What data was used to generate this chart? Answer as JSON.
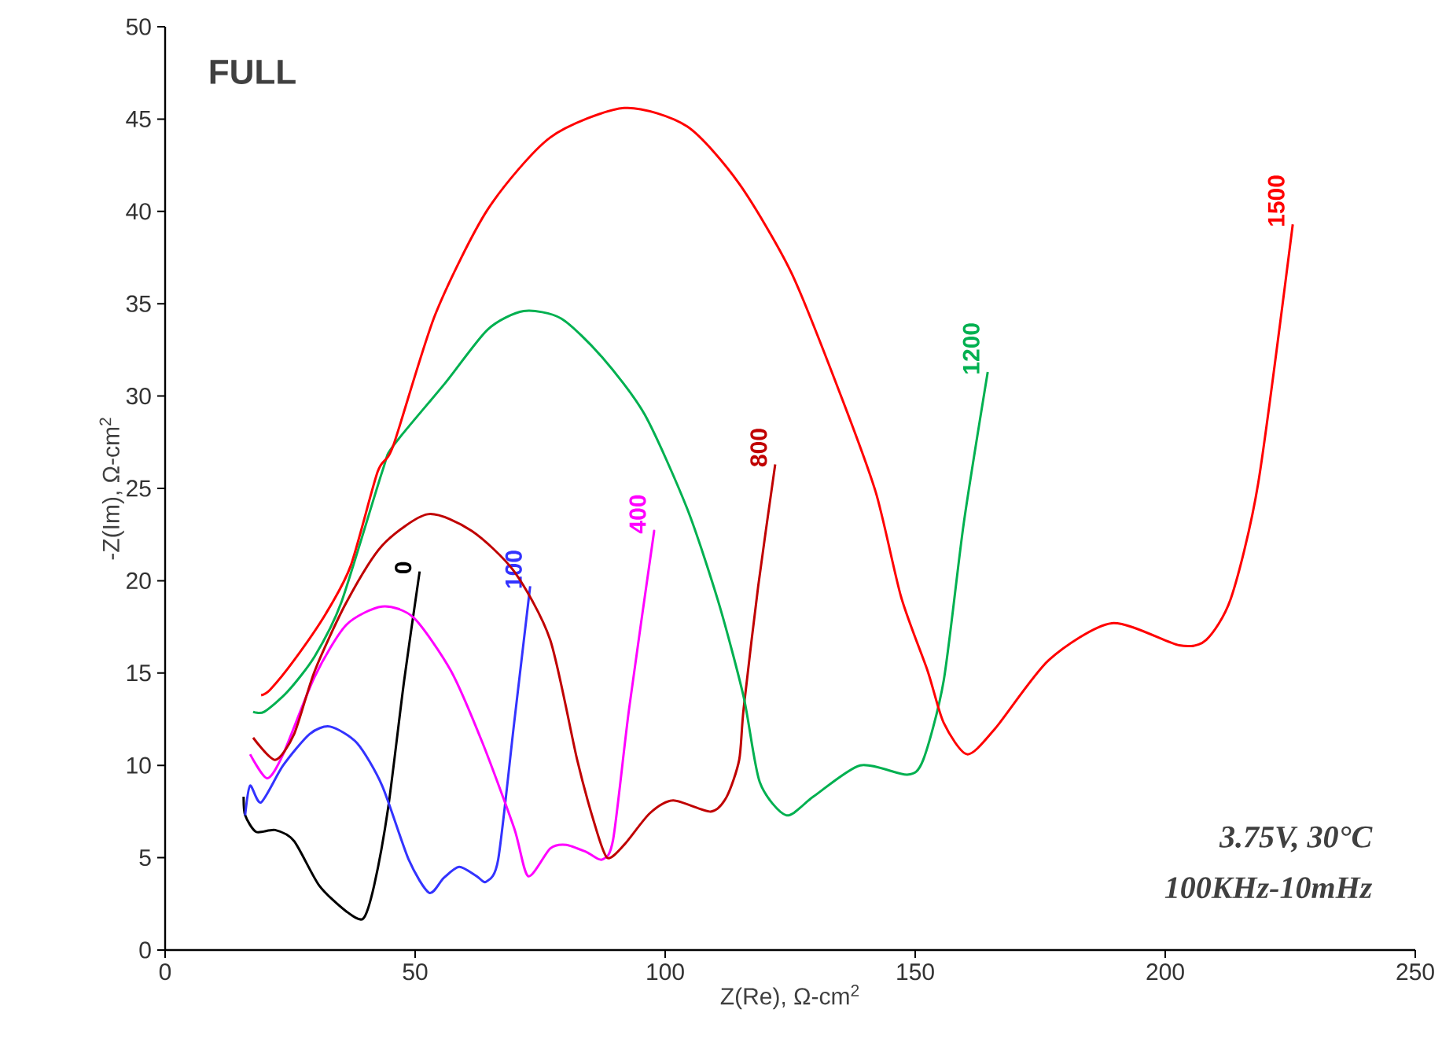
{
  "chart_data": {
    "type": "line",
    "xlabel": "Z(Re), Ω-cm$^{2}$",
    "ylabel": "-Z(Im), Ω-cm$^{2}$",
    "xlim": [
      0,
      250
    ],
    "ylim": [
      0,
      50
    ],
    "xticks": [
      0,
      50,
      100,
      150,
      200,
      250
    ],
    "yticks": [
      0,
      5,
      10,
      15,
      20,
      25,
      30,
      35,
      40,
      45,
      50
    ],
    "grid": false,
    "legend": false,
    "marker": "none",
    "annotations": [
      "FULL",
      "3.75V, 30°C",
      "100KHz-10mHz"
    ],
    "series": [
      {
        "name": "0",
        "color": "#000000",
        "x": [
          15.7,
          16,
          18.2,
          22,
          25.8,
          30.8,
          36.2,
          39.6,
          41.8,
          44.6,
          47.8,
          50.9
        ],
        "values": [
          8.3,
          7.3,
          6.4,
          6.5,
          5.9,
          3.5,
          2.1,
          1.7,
          3.5,
          7.7,
          14.6,
          20.5
        ]
      },
      {
        "name": "100",
        "color": "#3333ff",
        "x": [
          16,
          17,
          19.2,
          23.6,
          28.9,
          33,
          38.4,
          43.4,
          48.7,
          52.8,
          55.7,
          58.8,
          62.3,
          64.2,
          66.6,
          69.8,
          73
        ],
        "values": [
          7.3,
          8.9,
          8,
          10,
          11.7,
          12.1,
          11.2,
          8.9,
          4.9,
          3.1,
          3.9,
          4.5,
          4,
          3.7,
          4.9,
          12.3,
          19.7
        ]
      },
      {
        "name": "400",
        "color": "#ff00ff",
        "x": [
          17,
          20.4,
          23.6,
          29.9,
          36.2,
          43.4,
          49.7,
          57.2,
          63.5,
          69.8,
          72.6,
          77,
          80.2,
          84.3,
          87.4,
          89.6,
          92.8,
          97.8
        ],
        "values": [
          10.6,
          9.3,
          10.6,
          14.8,
          17.6,
          18.6,
          18,
          15.1,
          11.2,
          6.6,
          4,
          5.5,
          5.7,
          5.3,
          4.9,
          6,
          13.1,
          22.7
        ]
      },
      {
        "name": "800",
        "color": "#c00000",
        "x": [
          17.6,
          22,
          25.8,
          29.9,
          36.2,
          43.4,
          52.5,
          61.3,
          69.8,
          77,
          82.4,
          85.8,
          88.4,
          91.8,
          96.9,
          101.6,
          109.1,
          112.3,
          114.8,
          115.7,
          118.6,
          122
        ],
        "values": [
          11.5,
          10.3,
          11.7,
          15.1,
          18.8,
          21.9,
          23.6,
          22.7,
          20.5,
          16.8,
          10.3,
          6.9,
          5,
          5.7,
          7.4,
          8.1,
          7.5,
          8.3,
          10.3,
          13.1,
          19.7,
          26.3
        ]
      },
      {
        "name": "1200",
        "color": "#00b050",
        "x": [
          17.6,
          19.8,
          24.5,
          29.9,
          35.2,
          43.4,
          45.6,
          56,
          64.5,
          71.7,
          79.2,
          87.4,
          95.9,
          104.4,
          110.7,
          115.7,
          118.9,
          124.2,
          129.6,
          139,
          148.4,
          151.6,
          155.7,
          159.7,
          164.5
        ],
        "values": [
          12.9,
          12.9,
          14,
          15.9,
          18.8,
          25.9,
          27.3,
          30.7,
          33.6,
          34.6,
          34.2,
          32.1,
          29,
          23.9,
          18.8,
          13.7,
          9.1,
          7.3,
          8.3,
          10,
          9.5,
          10.3,
          14.6,
          23.1,
          31.3
        ]
      },
      {
        "name": "1500",
        "color": "#ff0000",
        "x": [
          19.2,
          21,
          25.8,
          32.1,
          37.1,
          42.5,
          45.6,
          54,
          64.5,
          77,
          91.8,
          104.4,
          114.8,
          125.2,
          134.6,
          142.1,
          147.2,
          152.5,
          155.7,
          160.4,
          166,
          176.7,
          189.3,
          202.8,
          208.2,
          213.2,
          218.6,
          225.5
        ],
        "values": [
          13.8,
          14.1,
          15.7,
          18.2,
          20.8,
          25.9,
          27.3,
          34.4,
          40.1,
          44,
          45.6,
          44.6,
          41.5,
          36.7,
          30.4,
          24.8,
          19.1,
          15.1,
          12.3,
          10.6,
          12,
          15.7,
          17.7,
          16.5,
          16.8,
          19.1,
          25.3,
          39.3
        ]
      }
    ]
  }
}
